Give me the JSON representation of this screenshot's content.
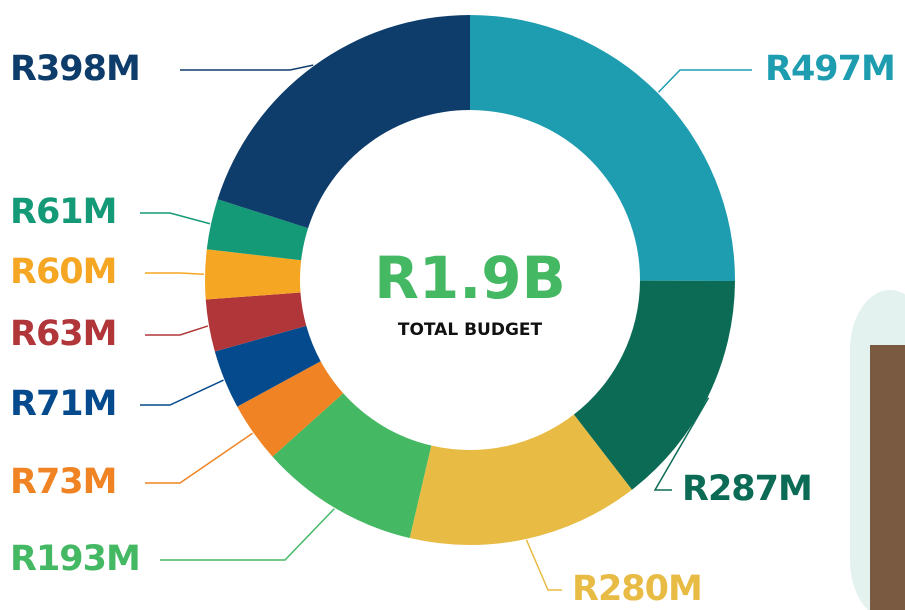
{
  "chart_data": {
    "type": "donut",
    "center_value": "R1.9B",
    "center_caption": "TOTAL BUDGET",
    "values": [
      497,
      287,
      280,
      193,
      73,
      71,
      63,
      60,
      61,
      398
    ],
    "value_labels": [
      "R497M",
      "R287M",
      "R280M",
      "R193M",
      "R73M",
      "R71M",
      "R63M",
      "R60M",
      "R61M",
      "R398M"
    ],
    "colors": [
      "#1e9db0",
      "#0b6b55",
      "#e8bb45",
      "#45b864",
      "#f08424",
      "#044a8c",
      "#b0363a",
      "#f5a623",
      "#159a78",
      "#0f3d6b"
    ]
  }
}
